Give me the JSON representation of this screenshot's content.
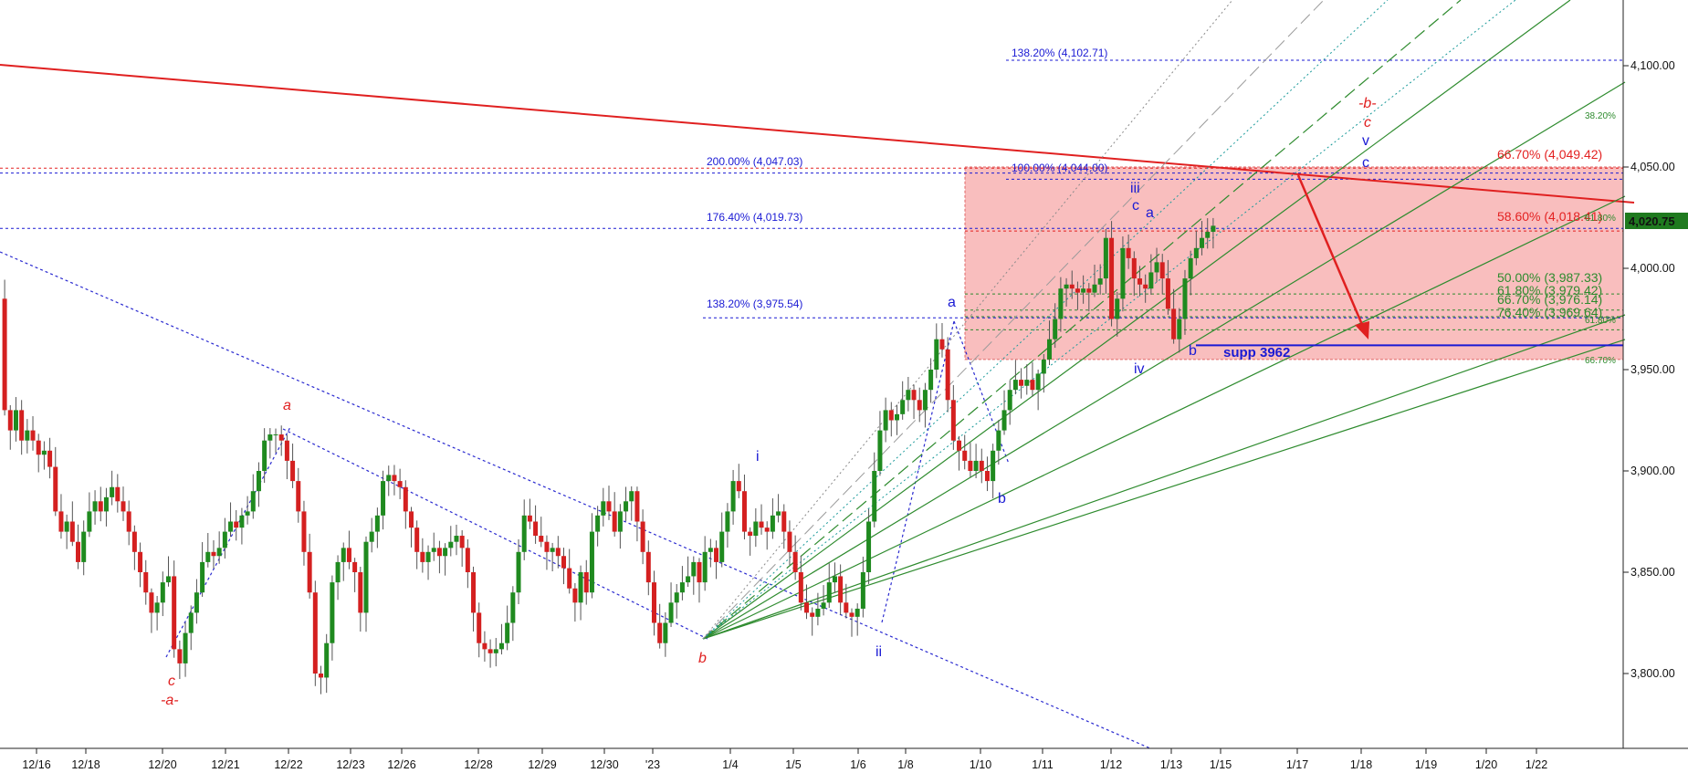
{
  "chart_data": {
    "type": "candlestick",
    "y_axis": {
      "ylim": [
        3770,
        4130
      ],
      "ticks": [
        "4,100.00",
        "4,050.00",
        "4,000.00",
        "3,950.00",
        "3,900.00",
        "3,850.00",
        "3,800.00"
      ],
      "tick_values": [
        4100,
        4050,
        4000,
        3950,
        3900,
        3850,
        3800
      ]
    },
    "x_axis": {
      "ticks": [
        "12/16",
        "12/18",
        "12/20",
        "12/21",
        "12/22",
        "12/23",
        "12/26",
        "12/28",
        "12/29",
        "12/30",
        "'23",
        "1/4",
        "1/5",
        "1/6",
        "1/8",
        "1/10",
        "1/11",
        "1/12",
        "1/13",
        "1/15",
        "1/17",
        "1/18",
        "1/19",
        "1/20",
        "1/22"
      ]
    },
    "last_price": {
      "value": 4020.75,
      "label": "4,020.75"
    },
    "candle_path": [
      [
        0,
        3985
      ],
      [
        4,
        3930
      ],
      [
        8,
        3920
      ],
      [
        12,
        3930
      ],
      [
        16,
        3915
      ],
      [
        20,
        3920
      ],
      [
        24,
        3915
      ],
      [
        28,
        3908
      ],
      [
        32,
        3910
      ],
      [
        36,
        3902
      ],
      [
        40,
        3880
      ],
      [
        44,
        3870
      ],
      [
        48,
        3875
      ],
      [
        52,
        3865
      ],
      [
        56,
        3855
      ],
      [
        60,
        3870
      ],
      [
        64,
        3880
      ],
      [
        68,
        3885
      ],
      [
        72,
        3880
      ],
      [
        76,
        3887
      ],
      [
        80,
        3892
      ],
      [
        84,
        3885
      ],
      [
        88,
        3880
      ],
      [
        92,
        3870
      ],
      [
        96,
        3860
      ],
      [
        100,
        3850
      ],
      [
        104,
        3840
      ],
      [
        108,
        3830
      ],
      [
        112,
        3835
      ],
      [
        116,
        3845
      ],
      [
        120,
        3848
      ],
      [
        124,
        3812
      ],
      [
        128,
        3805
      ],
      [
        132,
        3820
      ],
      [
        136,
        3830
      ],
      [
        140,
        3840
      ],
      [
        144,
        3855
      ],
      [
        148,
        3860
      ],
      [
        152,
        3858
      ],
      [
        156,
        3862
      ],
      [
        160,
        3870
      ],
      [
        164,
        3875
      ],
      [
        168,
        3872
      ],
      [
        172,
        3878
      ],
      [
        176,
        3880
      ],
      [
        180,
        3890
      ],
      [
        184,
        3900
      ],
      [
        188,
        3915
      ],
      [
        192,
        3918
      ],
      [
        196,
        3918
      ],
      [
        200,
        3915
      ],
      [
        204,
        3905
      ],
      [
        208,
        3895
      ],
      [
        212,
        3880
      ],
      [
        216,
        3860
      ],
      [
        220,
        3840
      ],
      [
        224,
        3800
      ],
      [
        228,
        3798
      ],
      [
        232,
        3815
      ],
      [
        236,
        3845
      ],
      [
        240,
        3855
      ],
      [
        244,
        3862
      ],
      [
        248,
        3855
      ],
      [
        252,
        3850
      ],
      [
        256,
        3830
      ],
      [
        260,
        3865
      ],
      [
        264,
        3870
      ],
      [
        268,
        3878
      ],
      [
        272,
        3895
      ],
      [
        276,
        3898
      ],
      [
        280,
        3895
      ],
      [
        284,
        3892
      ],
      [
        288,
        3880
      ],
      [
        292,
        3872
      ],
      [
        296,
        3860
      ],
      [
        300,
        3855
      ],
      [
        304,
        3860
      ],
      [
        308,
        3862
      ],
      [
        312,
        3858
      ],
      [
        316,
        3862
      ],
      [
        320,
        3865
      ],
      [
        324,
        3868
      ],
      [
        328,
        3862
      ],
      [
        332,
        3850
      ],
      [
        336,
        3830
      ],
      [
        340,
        3815
      ],
      [
        344,
        3812
      ],
      [
        348,
        3810
      ],
      [
        352,
        3812
      ],
      [
        356,
        3815
      ],
      [
        360,
        3825
      ],
      [
        364,
        3840
      ],
      [
        368,
        3860
      ],
      [
        372,
        3878
      ],
      [
        376,
        3875
      ],
      [
        380,
        3868
      ],
      [
        384,
        3865
      ],
      [
        388,
        3860
      ],
      [
        392,
        3862
      ],
      [
        396,
        3858
      ],
      [
        400,
        3852
      ],
      [
        404,
        3842
      ],
      [
        408,
        3835
      ],
      [
        412,
        3850
      ],
      [
        416,
        3840
      ],
      [
        420,
        3870
      ],
      [
        424,
        3878
      ],
      [
        428,
        3885
      ],
      [
        432,
        3880
      ],
      [
        436,
        3870
      ],
      [
        440,
        3880
      ],
      [
        444,
        3885
      ],
      [
        448,
        3890
      ],
      [
        452,
        3875
      ],
      [
        456,
        3860
      ],
      [
        460,
        3845
      ],
      [
        464,
        3825
      ],
      [
        468,
        3815
      ],
      [
        472,
        3825
      ],
      [
        476,
        3835
      ],
      [
        480,
        3840
      ],
      [
        484,
        3845
      ],
      [
        488,
        3848
      ],
      [
        492,
        3855
      ],
      [
        496,
        3845
      ],
      [
        500,
        3860
      ],
      [
        504,
        3862
      ],
      [
        508,
        3855
      ],
      [
        512,
        3870
      ],
      [
        516,
        3880
      ],
      [
        520,
        3895
      ],
      [
        524,
        3890
      ],
      [
        528,
        3870
      ],
      [
        532,
        3868
      ],
      [
        536,
        3875
      ],
      [
        540,
        3872
      ],
      [
        544,
        3870
      ],
      [
        548,
        3878
      ],
      [
        552,
        3880
      ],
      [
        556,
        3870
      ],
      [
        560,
        3860
      ],
      [
        564,
        3850
      ],
      [
        568,
        3835
      ],
      [
        572,
        3830
      ],
      [
        576,
        3828
      ],
      [
        580,
        3832
      ],
      [
        584,
        3835
      ],
      [
        588,
        3845
      ],
      [
        592,
        3848
      ],
      [
        596,
        3835
      ],
      [
        600,
        3830
      ],
      [
        604,
        3828
      ],
      [
        608,
        3832
      ],
      [
        612,
        3850
      ],
      [
        616,
        3875
      ],
      [
        620,
        3900
      ],
      [
        624,
        3920
      ],
      [
        628,
        3930
      ],
      [
        632,
        3925
      ],
      [
        636,
        3928
      ],
      [
        640,
        3935
      ],
      [
        644,
        3940
      ],
      [
        648,
        3935
      ],
      [
        652,
        3930
      ],
      [
        656,
        3940
      ],
      [
        660,
        3950
      ],
      [
        664,
        3965
      ],
      [
        668,
        3960
      ],
      [
        672,
        3935
      ],
      [
        676,
        3915
      ],
      [
        680,
        3910
      ],
      [
        684,
        3905
      ],
      [
        688,
        3900
      ],
      [
        692,
        3905
      ],
      [
        696,
        3900
      ],
      [
        700,
        3895
      ],
      [
        704,
        3910
      ],
      [
        708,
        3920
      ],
      [
        712,
        3930
      ],
      [
        716,
        3940
      ],
      [
        720,
        3945
      ],
      [
        724,
        3942
      ],
      [
        728,
        3945
      ],
      [
        732,
        3940
      ],
      [
        736,
        3948
      ],
      [
        740,
        3955
      ],
      [
        744,
        3965
      ],
      [
        748,
        3975
      ],
      [
        752,
        3990
      ],
      [
        756,
        3992
      ],
      [
        760,
        3990
      ],
      [
        764,
        3988
      ],
      [
        768,
        3990
      ],
      [
        772,
        3988
      ],
      [
        776,
        3992
      ],
      [
        780,
        3995
      ],
      [
        784,
        4015
      ],
      [
        788,
        3975
      ],
      [
        792,
        3985
      ],
      [
        796,
        4010
      ],
      [
        800,
        4005
      ],
      [
        804,
        3995
      ],
      [
        808,
        3992
      ],
      [
        812,
        3990
      ],
      [
        816,
        3998
      ],
      [
        820,
        4003
      ],
      [
        824,
        3995
      ],
      [
        828,
        3980
      ],
      [
        832,
        3965
      ],
      [
        836,
        3975
      ],
      [
        840,
        3995
      ],
      [
        844,
        4005
      ],
      [
        848,
        4010
      ],
      [
        852,
        4015
      ],
      [
        856,
        4018
      ],
      [
        860,
        4021
      ]
    ],
    "fib_levels": [
      {
        "label": "138.20% (4,102.71)",
        "value": 4102.71,
        "color": "#1a1ad4"
      },
      {
        "label": "200.00% (4,047.03)",
        "value": 4047.03,
        "color": "#1a1ad4"
      },
      {
        "label": "100.00% (4,044.00)",
        "value": 4044.0,
        "color": "#1a1ad4"
      },
      {
        "label": "176.40% (4,019.73)",
        "value": 4019.73,
        "color": "#1a1ad4"
      },
      {
        "label": "138.20% (3,975.54)",
        "value": 3975.54,
        "color": "#1a1ad4"
      },
      {
        "label": "66.70% (4,049.42)",
        "value": 4049.42,
        "color": "#e32222"
      },
      {
        "label": "58.60% (4,018.41)",
        "value": 4018.41,
        "color": "#e32222"
      },
      {
        "label": "50.00% (3,987.33)",
        "value": 3987.33,
        "color": "#2e8b2e"
      },
      {
        "label": "61.80% (3,979.42)",
        "value": 3979.42,
        "color": "#2e8b2e"
      },
      {
        "label": "66.70% (3,976.14)",
        "value": 3976.14,
        "color": "#2e8b2e"
      },
      {
        "label": "76.40% (3,969.64)",
        "value": 3969.64,
        "color": "#2e8b2e"
      }
    ],
    "fan_labels": [
      "38.20%",
      "66.70%",
      "61.80%",
      "61.80%"
    ],
    "support": {
      "label": "supp 3962",
      "value": 3962
    },
    "zone": {
      "low": 3955,
      "high": 4050
    },
    "wave_labels": {
      "red": [
        "a",
        "c",
        "-a-",
        "b",
        "-b-",
        "c"
      ],
      "blue": [
        "i",
        "ii",
        "a",
        "b",
        "iii",
        "c",
        "a",
        "iv",
        "b",
        "v",
        "c"
      ]
    }
  }
}
